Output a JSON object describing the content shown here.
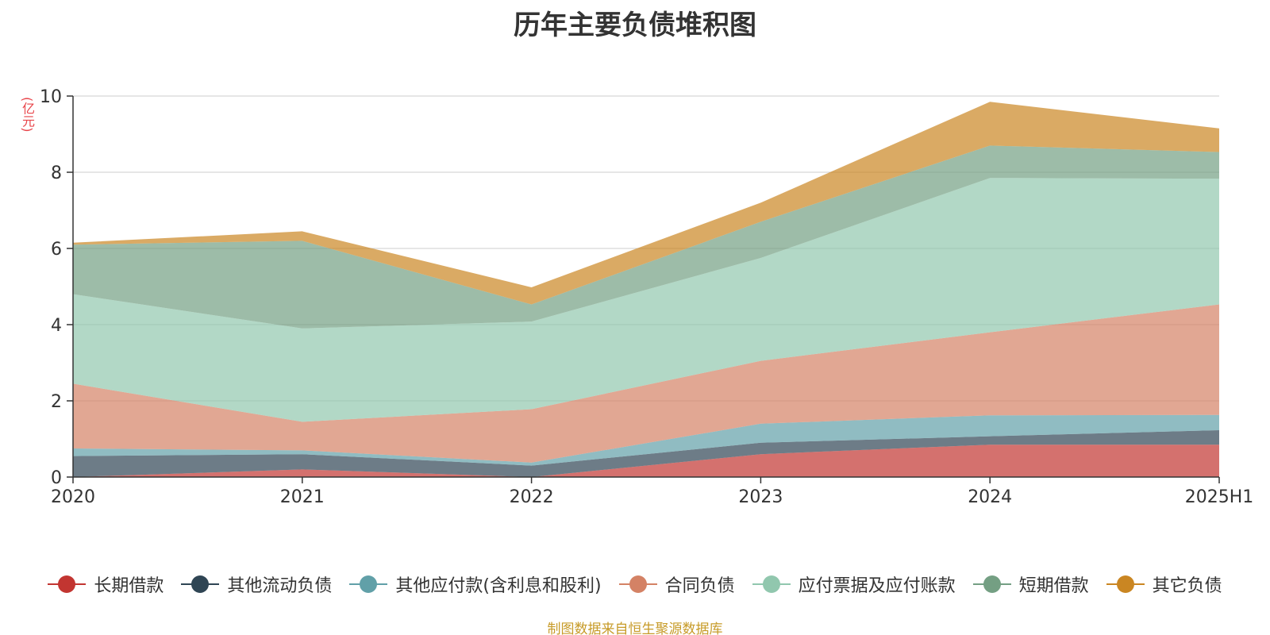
{
  "chart_data": {
    "type": "area",
    "stacked": true,
    "title": "历年主要负债堆积图",
    "unit_label": "(亿元)",
    "source_note": "制图数据来自恒生聚源数据库",
    "categories": [
      "2020",
      "2021",
      "2022",
      "2023",
      "2024",
      "2025H1"
    ],
    "ylim": [
      0,
      10
    ],
    "yticks": [
      0,
      2,
      4,
      6,
      8,
      10
    ],
    "grid": true,
    "legend_position": "bottom",
    "series": [
      {
        "name": "长期借款",
        "color": "#c23531",
        "values": [
          0.0,
          0.2,
          0.0,
          0.6,
          0.85,
          0.85
        ]
      },
      {
        "name": "其他流动负债",
        "color": "#2f4554",
        "values": [
          0.55,
          0.4,
          0.3,
          0.3,
          0.22,
          0.38
        ]
      },
      {
        "name": "其他应付款(含利息和股利)",
        "color": "#61a0a8",
        "values": [
          0.2,
          0.1,
          0.08,
          0.5,
          0.55,
          0.4
        ]
      },
      {
        "name": "合同负债",
        "color": "#d48265",
        "values": [
          1.7,
          0.75,
          1.4,
          1.65,
          2.18,
          2.9
        ]
      },
      {
        "name": "应付票据及应付账款",
        "color": "#91c7ae",
        "values": [
          2.35,
          2.45,
          2.3,
          2.7,
          4.05,
          3.3
        ]
      },
      {
        "name": "短期借款",
        "color": "#749f83",
        "values": [
          1.3,
          2.3,
          0.45,
          0.95,
          0.85,
          0.7
        ]
      },
      {
        "name": "其它负债",
        "color": "#ca8622",
        "values": [
          0.05,
          0.25,
          0.45,
          0.5,
          1.15,
          0.62
        ]
      }
    ]
  }
}
